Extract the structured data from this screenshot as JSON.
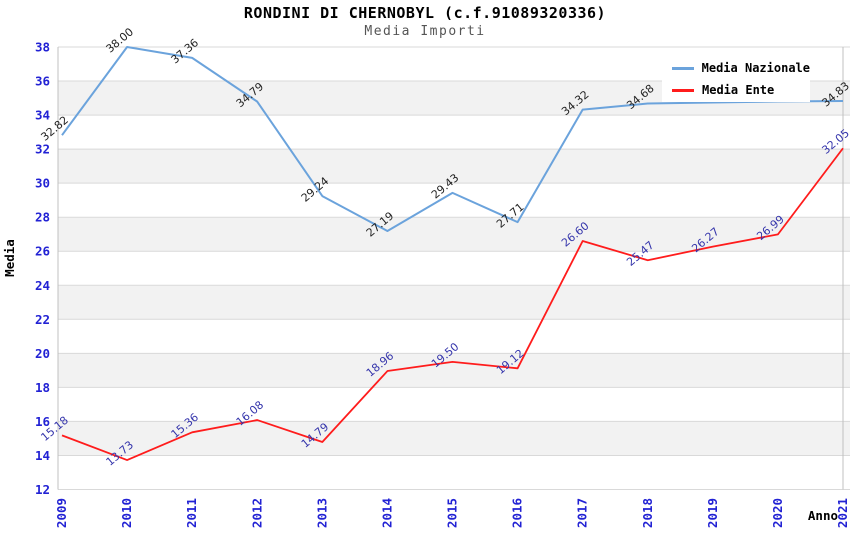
{
  "title": "RONDINI DI CHERNOBYL (c.f.91089320336)",
  "subtitle": "Media Importi",
  "legend": {
    "position": "top-right",
    "items": [
      {
        "label": "Media Nazionale",
        "color": "#6ba3dc"
      },
      {
        "label": "Media Ente",
        "color": "#ff1c1c"
      }
    ]
  },
  "colors": {
    "band": "#f2f2f2",
    "grid": "#d9d9d9",
    "border": "#c0c0c0",
    "tick_label": "#2222d4",
    "axis_title": "#000000",
    "title": "#000000",
    "subtitle": "#555555",
    "legend_bg": "#ffffff"
  },
  "chart_data": {
    "type": "line",
    "title": "RONDINI DI CHERNOBYL (c.f.91089320336)",
    "subtitle": "Media Importi",
    "xlabel": "Anno",
    "ylabel": "Media",
    "ylim": [
      12,
      38
    ],
    "ytick_step": 2,
    "grid": true,
    "alternating_bands": true,
    "legend_position": "top-right",
    "categories": [
      "2009",
      "2010",
      "2011",
      "2012",
      "2013",
      "2014",
      "2015",
      "2016",
      "2017",
      "2018",
      "2019",
      "2020",
      "2021"
    ],
    "series": [
      {
        "name": "Media Nazionale",
        "color": "#6ba3dc",
        "stroke_width": 2,
        "label_color": "#222222",
        "values": [
          32.82,
          38.0,
          37.36,
          34.79,
          29.24,
          27.19,
          29.43,
          27.71,
          34.32,
          34.68,
          34.74,
          34.8,
          34.83
        ],
        "labels": [
          "32.82",
          "38.00",
          "37.36",
          "34.79",
          "29.24",
          "27.19",
          "29.43",
          "27.71",
          "34.32",
          "34.68",
          null,
          null,
          "34.83"
        ]
      },
      {
        "name": "Media Ente",
        "color": "#ff1c1c",
        "stroke_width": 1.8,
        "label_color": "#3434ab",
        "values": [
          15.18,
          13.73,
          15.36,
          16.08,
          14.79,
          18.96,
          19.5,
          19.12,
          26.6,
          25.47,
          26.27,
          26.99,
          32.05
        ],
        "labels": [
          "15.18",
          "13.73",
          "15.36",
          "16.08",
          "14.79",
          "18.96",
          "19.50",
          "19.12",
          "26.60",
          "25.47",
          "26.27",
          "26.99",
          "32.05"
        ]
      }
    ]
  }
}
